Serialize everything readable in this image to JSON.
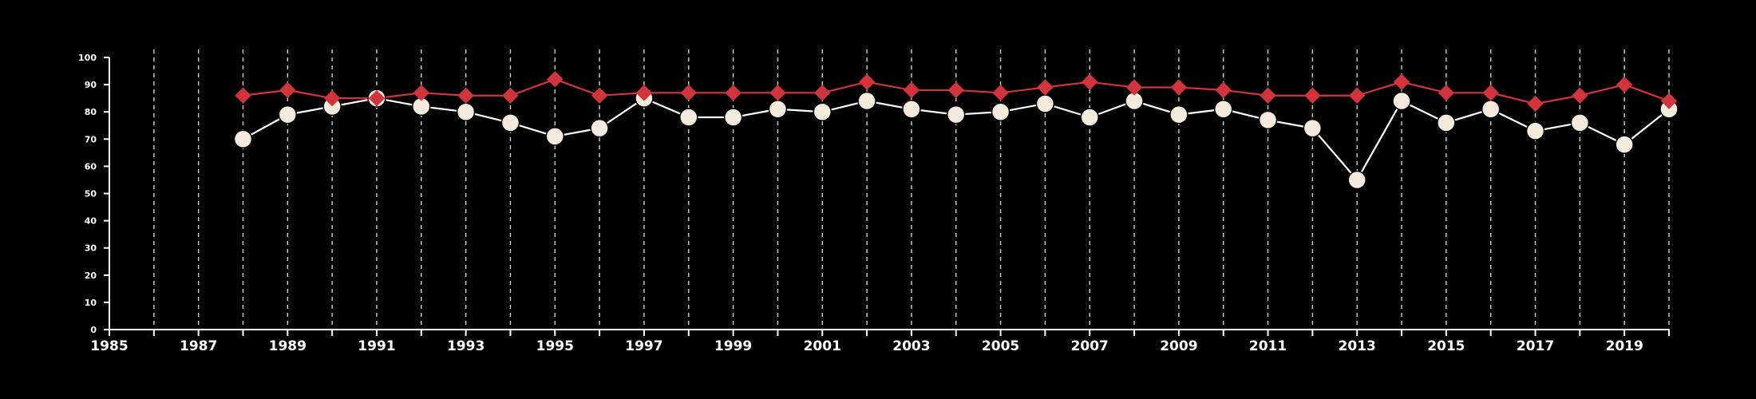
{
  "chart_data": {
    "type": "line",
    "x": [
      1988,
      1989,
      1990,
      1991,
      1992,
      1993,
      1994,
      1995,
      1996,
      1997,
      1998,
      1999,
      2000,
      2001,
      2002,
      2003,
      2004,
      2005,
      2006,
      2007,
      2008,
      2009,
      2010,
      2011,
      2012,
      2013,
      2014,
      2015,
      2016,
      2017,
      2018,
      2019,
      2020
    ],
    "series": [
      {
        "color": "#d1343a",
        "marker": "diamond",
        "values": [
          86,
          88,
          85,
          85,
          87,
          86,
          86,
          92,
          86,
          87,
          87,
          87,
          87,
          87,
          91,
          88,
          88,
          87,
          89,
          91,
          89,
          89,
          88,
          86,
          86,
          86,
          91,
          87,
          87,
          83,
          86,
          90,
          84
        ]
      },
      {
        "color": "#ffffff",
        "marker_fill": "#f5ebdc",
        "marker": "circle",
        "values": [
          70,
          79,
          82,
          85,
          82,
          80,
          76,
          71,
          74,
          85,
          78,
          78,
          81,
          80,
          84,
          81,
          79,
          80,
          83,
          78,
          84,
          79,
          81,
          77,
          74,
          55,
          84,
          76,
          81,
          73,
          76,
          68,
          81
        ]
      }
    ],
    "xlim": [
      1985,
      2020
    ],
    "ylim": [
      0,
      100
    ],
    "x_tick_labels": [
      "1985",
      "1987",
      "1989",
      "1991",
      "1993",
      "1995",
      "1997",
      "1999",
      "2001",
      "2003",
      "2005",
      "2007",
      "2009",
      "2011",
      "2013",
      "2015",
      "2017",
      "2019"
    ],
    "y_tick_labels": [
      "0",
      "10",
      "20",
      "30",
      "40",
      "50",
      "60",
      "70",
      "80",
      "90",
      "100"
    ],
    "vertical_gridlines_every_year": true,
    "gridline_style": "dashed",
    "background": "#000000",
    "axis_color": "#ffffff"
  }
}
